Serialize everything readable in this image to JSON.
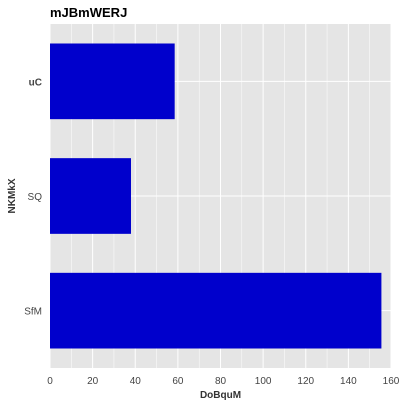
{
  "chart_data": {
    "type": "bar",
    "orientation": "horizontal",
    "title": "mJBmWERJ",
    "xlabel": "DoBquM",
    "ylabel": "NKMkX",
    "categories": [
      "uC",
      "SQ",
      "SfM"
    ],
    "values": [
      58.5,
      38,
      155.5
    ],
    "xlim": [
      0,
      160
    ],
    "xticks": [
      0,
      20,
      40,
      60,
      80,
      100,
      120,
      140,
      160
    ],
    "grid": true,
    "colors": {
      "bar": "#0000cc",
      "background": "#e5e5e5",
      "grid": "#ffffff"
    }
  }
}
